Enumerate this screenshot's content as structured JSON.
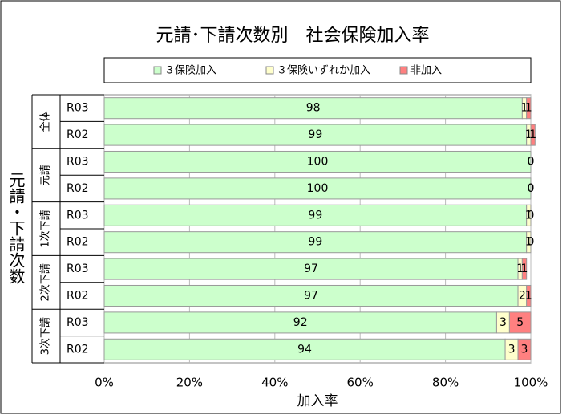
{
  "chart_data": {
    "type": "stacked-bar-horizontal",
    "title": "元請･下請次数別　社会保険加入率",
    "y_axis_title": "元請・下請次数",
    "x_axis_title": "加入率",
    "groups": [
      "全体",
      "元請",
      "1次下請",
      "2次下請",
      "3次下請"
    ],
    "categories": [
      "R03",
      "R02",
      "R03",
      "R02",
      "R03",
      "R02",
      "R03",
      "R02",
      "R03",
      "R02"
    ],
    "series": [
      {
        "name": "３保険加入",
        "color": "#ccffcc",
        "values": [
          98,
          99,
          100,
          100,
          99,
          99,
          97,
          97,
          92,
          94
        ]
      },
      {
        "name": "３保険いずれか加入",
        "color": "#ffffcc",
        "values": [
          1,
          1,
          0,
          0,
          1,
          1,
          1,
          2,
          3,
          3
        ]
      },
      {
        "name": "非加入",
        "color": "#ff8080",
        "values": [
          1,
          1,
          0,
          0,
          0,
          0,
          1,
          1,
          5,
          3
        ]
      }
    ],
    "xlim": [
      0,
      100
    ],
    "xticks": [
      {
        "value": 0,
        "label": "0%"
      },
      {
        "value": 20,
        "label": "20%"
      },
      {
        "value": 40,
        "label": "40%"
      },
      {
        "value": 60,
        "label": "60%"
      },
      {
        "value": 80,
        "label": "80%"
      },
      {
        "value": 100,
        "label": "100%"
      }
    ],
    "grid": true
  }
}
